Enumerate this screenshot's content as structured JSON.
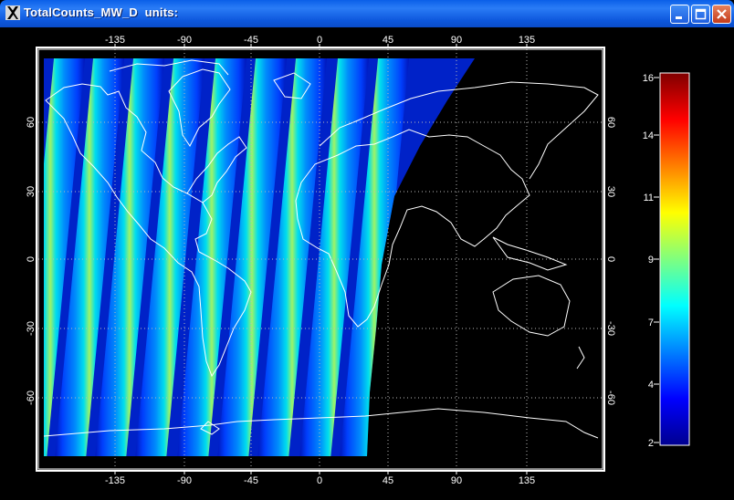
{
  "window": {
    "title": "TotalCounts_MW_D  units:",
    "controls": {
      "minimize": "minimize",
      "maximize": "maximize",
      "close": "close"
    }
  },
  "colors": {
    "titlebar": "#0a5fe8",
    "background": "#000000",
    "coastline": "#ffffff"
  },
  "map": {
    "lon_ticks": [
      "-135",
      "-90",
      "-45",
      "0",
      "45",
      "90",
      "135"
    ],
    "lat_ticks": [
      "60",
      "30",
      "0",
      "-30",
      "-60"
    ],
    "projection": "cylindrical",
    "lon_range": [
      -180,
      180
    ],
    "lat_range": [
      -90,
      90
    ],
    "grid": "dotted"
  },
  "colorbar": {
    "labels": [
      "16",
      "14",
      "11",
      "9",
      "7",
      "4",
      "2"
    ],
    "range": [
      2,
      16
    ],
    "colormap": "jet"
  }
}
